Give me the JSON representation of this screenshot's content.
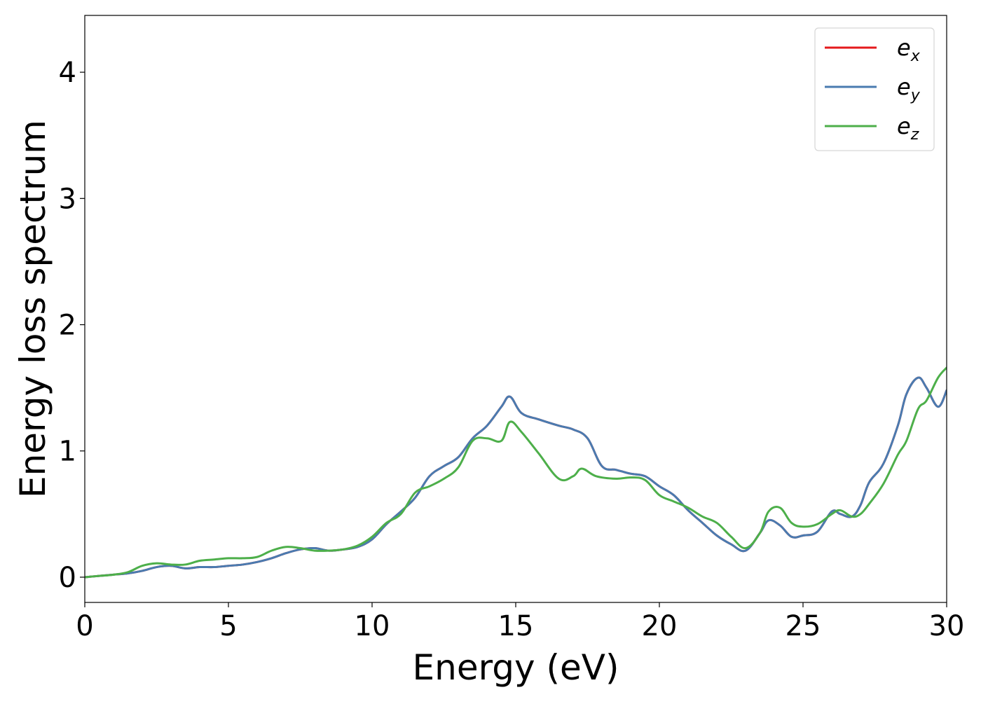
{
  "chart_data": {
    "type": "line",
    "title": "",
    "xlabel": "Energy (eV)",
    "ylabel": "Energy loss spectrum",
    "xlim": [
      0,
      30
    ],
    "ylim": [
      -0.2,
      4.45
    ],
    "xticks": [
      0,
      5,
      10,
      15,
      20,
      25,
      30
    ],
    "xtick_labels": [
      "0",
      "5",
      "10",
      "15",
      "20",
      "25",
      "30"
    ],
    "yticks": [
      0,
      1,
      2,
      3,
      4
    ],
    "ytick_labels": [
      "0",
      "1",
      "2",
      "3",
      "4"
    ],
    "grid": false,
    "legend_position": "top-right",
    "series": [
      {
        "name": "e_x",
        "legend_base": "e",
        "legend_sub": "x",
        "color": "#e41a1c",
        "x": [
          0,
          0.5,
          1,
          1.5,
          2,
          2.5,
          3,
          3.5,
          4,
          4.5,
          5,
          5.5,
          6,
          6.5,
          7,
          7.5,
          8,
          8.5,
          9,
          9.5,
          10,
          10.5,
          11,
          11.5,
          12,
          12.5,
          13,
          13.5,
          14,
          14.5,
          14.8,
          15.2,
          15.8,
          16.5,
          17,
          17.5,
          18,
          18.5,
          19,
          19.5,
          20,
          20.5,
          21,
          21.5,
          22,
          22.5,
          23,
          23.5,
          23.8,
          24.2,
          24.6,
          25,
          25.5,
          26,
          26.3,
          26.7,
          27,
          27.3,
          27.8,
          28.3,
          28.6,
          29,
          29.3,
          29.7,
          30
        ],
        "y": [
          0.0,
          0.01,
          0.02,
          0.03,
          0.05,
          0.08,
          0.09,
          0.07,
          0.08,
          0.08,
          0.09,
          0.1,
          0.12,
          0.15,
          0.19,
          0.22,
          0.23,
          0.21,
          0.22,
          0.24,
          0.3,
          0.42,
          0.52,
          0.63,
          0.8,
          0.88,
          0.95,
          1.1,
          1.2,
          1.35,
          1.43,
          1.3,
          1.25,
          1.2,
          1.17,
          1.1,
          0.88,
          0.85,
          0.82,
          0.8,
          0.72,
          0.65,
          0.53,
          0.43,
          0.33,
          0.26,
          0.21,
          0.35,
          0.45,
          0.41,
          0.32,
          0.33,
          0.36,
          0.52,
          0.5,
          0.48,
          0.57,
          0.75,
          0.9,
          1.2,
          1.45,
          1.58,
          1.5,
          1.35,
          1.48
        ]
      },
      {
        "name": "e_y",
        "legend_base": "e",
        "legend_sub": "y",
        "color": "#4a7bb0",
        "x": [
          0,
          0.5,
          1,
          1.5,
          2,
          2.5,
          3,
          3.5,
          4,
          4.5,
          5,
          5.5,
          6,
          6.5,
          7,
          7.5,
          8,
          8.5,
          9,
          9.5,
          10,
          10.5,
          11,
          11.5,
          12,
          12.5,
          13,
          13.5,
          14,
          14.5,
          14.8,
          15.2,
          15.8,
          16.5,
          17,
          17.5,
          18,
          18.5,
          19,
          19.5,
          20,
          20.5,
          21,
          21.5,
          22,
          22.5,
          23,
          23.5,
          23.8,
          24.2,
          24.6,
          25,
          25.5,
          26,
          26.3,
          26.7,
          27,
          27.3,
          27.8,
          28.3,
          28.6,
          29,
          29.3,
          29.7,
          30
        ],
        "y": [
          0.0,
          0.01,
          0.02,
          0.03,
          0.05,
          0.08,
          0.09,
          0.07,
          0.08,
          0.08,
          0.09,
          0.1,
          0.12,
          0.15,
          0.19,
          0.22,
          0.23,
          0.21,
          0.22,
          0.24,
          0.3,
          0.42,
          0.52,
          0.63,
          0.8,
          0.88,
          0.95,
          1.1,
          1.2,
          1.35,
          1.43,
          1.3,
          1.25,
          1.2,
          1.17,
          1.1,
          0.88,
          0.85,
          0.82,
          0.8,
          0.72,
          0.65,
          0.53,
          0.43,
          0.33,
          0.26,
          0.21,
          0.35,
          0.45,
          0.41,
          0.32,
          0.33,
          0.36,
          0.52,
          0.5,
          0.48,
          0.57,
          0.75,
          0.9,
          1.2,
          1.45,
          1.58,
          1.5,
          1.35,
          1.48
        ]
      },
      {
        "name": "e_z",
        "legend_base": "e",
        "legend_sub": "z",
        "color": "#4daf4a",
        "x": [
          0,
          0.5,
          1,
          1.5,
          2,
          2.5,
          3,
          3.5,
          4,
          4.5,
          5,
          5.5,
          6,
          6.5,
          7,
          7.5,
          8,
          8.5,
          9,
          9.5,
          10,
          10.5,
          11,
          11.5,
          12,
          12.5,
          13,
          13.5,
          14,
          14.5,
          14.8,
          15.2,
          15.8,
          16.5,
          17,
          17.3,
          17.8,
          18.5,
          19,
          19.5,
          20,
          20.5,
          21,
          21.5,
          22,
          22.5,
          23,
          23.5,
          23.8,
          24.2,
          24.6,
          25,
          25.5,
          26,
          26.3,
          26.7,
          27,
          27.3,
          27.8,
          28.3,
          28.6,
          29,
          29.3,
          29.7,
          30
        ],
        "y": [
          0.0,
          0.01,
          0.02,
          0.04,
          0.09,
          0.11,
          0.1,
          0.1,
          0.13,
          0.14,
          0.15,
          0.15,
          0.16,
          0.21,
          0.24,
          0.23,
          0.21,
          0.21,
          0.22,
          0.25,
          0.32,
          0.43,
          0.5,
          0.67,
          0.72,
          0.78,
          0.87,
          1.08,
          1.1,
          1.08,
          1.23,
          1.15,
          0.98,
          0.78,
          0.8,
          0.86,
          0.8,
          0.78,
          0.79,
          0.77,
          0.65,
          0.6,
          0.55,
          0.48,
          0.43,
          0.32,
          0.23,
          0.35,
          0.52,
          0.55,
          0.43,
          0.4,
          0.42,
          0.5,
          0.53,
          0.48,
          0.5,
          0.58,
          0.74,
          0.97,
          1.08,
          1.33,
          1.4,
          1.58,
          1.66
        ]
      }
    ]
  }
}
